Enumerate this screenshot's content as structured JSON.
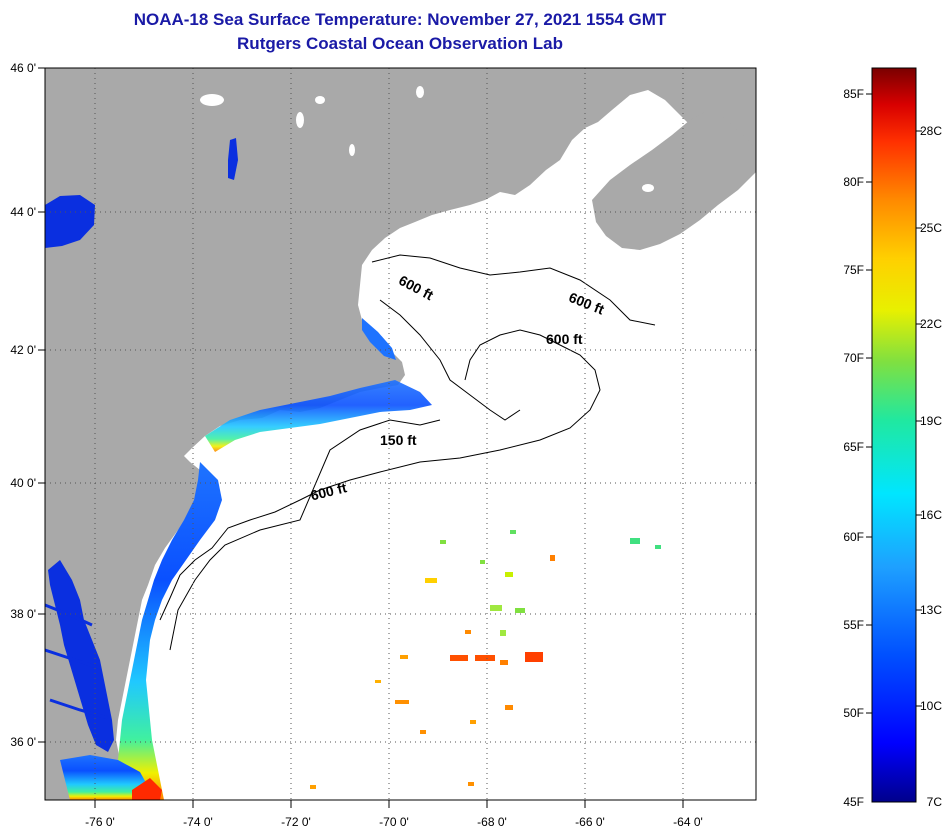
{
  "header": {
    "title": "NOAA-18 Sea Surface Temperature:  November 27, 2021 1554 GMT",
    "subtitle": "Rutgers Coastal Ocean Observation Lab"
  },
  "axes": {
    "lat_labels": [
      "46 0'",
      "44 0'",
      "42 0'",
      "40 0'",
      "38 0'",
      "36 0'"
    ],
    "lon_labels": [
      "-76 0'",
      "-74 0'",
      "-72 0'",
      "-70 0'",
      "-68 0'",
      "-66 0'",
      "-64 0'"
    ]
  },
  "contours": {
    "labels": [
      "600 ft",
      "600 ft",
      "600 ft",
      "150 ft",
      "600 ft"
    ]
  },
  "colorbar": {
    "fahrenheit": [
      "85F",
      "80F",
      "75F",
      "70F",
      "65F",
      "60F",
      "55F",
      "50F",
      "45F"
    ],
    "celsius": [
      "28C",
      "25C",
      "22C",
      "19C",
      "16C",
      "13C",
      "10C",
      "7C"
    ]
  },
  "colors": {
    "land": "#a9a9a9",
    "water": "#ffffff",
    "title": "#1a1aa6"
  }
}
